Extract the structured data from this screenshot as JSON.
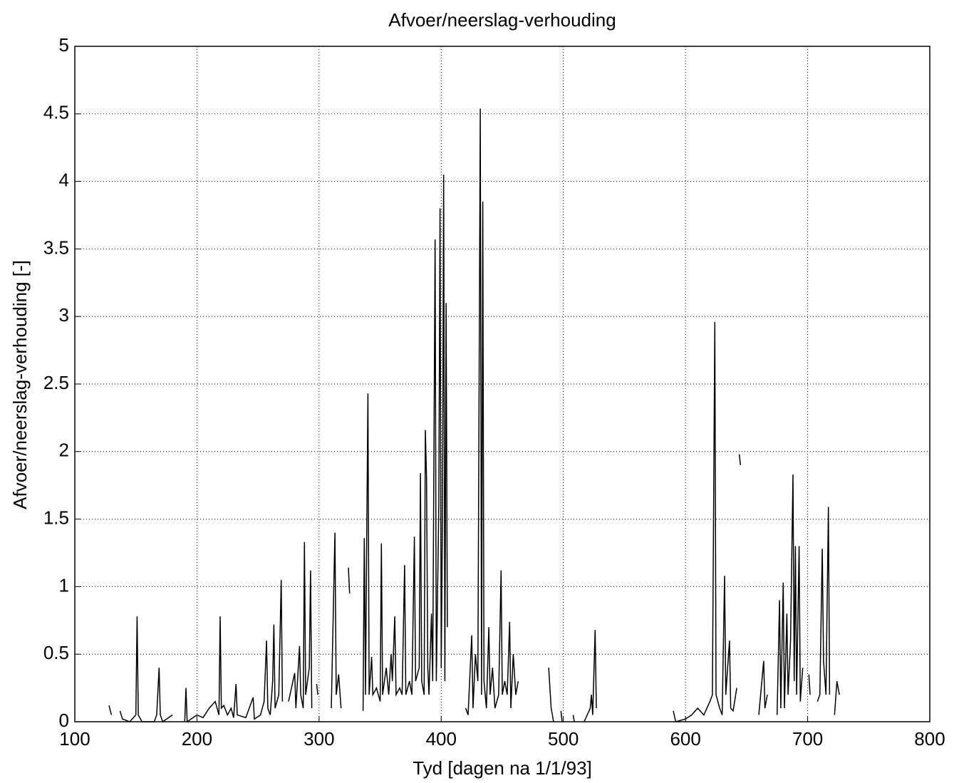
{
  "chart_data": {
    "type": "line",
    "title": "Afvoer/neerslag-verhouding",
    "x_label": "Tyd [dagen na 1/1/93]",
    "y_label": "Afvoer/neerslag-verhouding [-]",
    "x": [
      128,
      130,
      133,
      137,
      139,
      145,
      148,
      150,
      151,
      152,
      155,
      165,
      167,
      169,
      170,
      172,
      180,
      185,
      190,
      191,
      192,
      200,
      205,
      210,
      215,
      218,
      219,
      220,
      222,
      225,
      228,
      230,
      232,
      233,
      240,
      246,
      247,
      252,
      255,
      257,
      258,
      260,
      262,
      263,
      264,
      267,
      269,
      270,
      272,
      275,
      280,
      281,
      284,
      285,
      287,
      288,
      289,
      292,
      293,
      294,
      296,
      298,
      299,
      305,
      310,
      313,
      314,
      316,
      318,
      321,
      324,
      325,
      330,
      336,
      337,
      338,
      339,
      340,
      341,
      343,
      344,
      347,
      350,
      351,
      352,
      355,
      357,
      359,
      360,
      362,
      363,
      366,
      368,
      370,
      371,
      374,
      376,
      378,
      379,
      382,
      383,
      384,
      386,
      387,
      388,
      389,
      390,
      392,
      393,
      395,
      396,
      398,
      399,
      400,
      401,
      402,
      403,
      404,
      405,
      412,
      420,
      422,
      425,
      426,
      428,
      430,
      432,
      433,
      434,
      435,
      437,
      439,
      440,
      442,
      444,
      447,
      449,
      450,
      452,
      454,
      456,
      457,
      459,
      461,
      463,
      475,
      488,
      490,
      492,
      495,
      498,
      499,
      503,
      508,
      509,
      513,
      517,
      522,
      523,
      524,
      526,
      527,
      560,
      590,
      592,
      600,
      605,
      610,
      615,
      620,
      622,
      624,
      625,
      628,
      630,
      632,
      633,
      636,
      637,
      639,
      642,
      643,
      644,
      645,
      652,
      660,
      664,
      665,
      667,
      671,
      675,
      677,
      678,
      680,
      681,
      683,
      684,
      686,
      688,
      689,
      690,
      691,
      693,
      694,
      696,
      698,
      701,
      702,
      705,
      708,
      710,
      712,
      713,
      715,
      717,
      718,
      720,
      722,
      724,
      726
    ],
    "series": [
      {
        "name": "Afvoer/neerslag-verhouding",
        "color": "#000000",
        "values": [
          0.12,
          0.05,
          null,
          0.08,
          0.02,
          0,
          0.03,
          0.05,
          0.78,
          0.05,
          0,
          0,
          0.05,
          0.4,
          0.05,
          0,
          0.05,
          null,
          0,
          0.25,
          0,
          0.05,
          0.03,
          0.1,
          0.15,
          0.05,
          0.78,
          0.1,
          0.12,
          0.05,
          0.1,
          0.03,
          0.28,
          0.05,
          0.03,
          0.18,
          0.02,
          0.05,
          0.15,
          0.6,
          0.1,
          0.05,
          0.3,
          0.72,
          0.1,
          0.2,
          1.05,
          0.15,
          null,
          0.15,
          0.36,
          0.1,
          0.56,
          0.2,
          0.1,
          1.33,
          0.2,
          0.4,
          1.12,
          0.1,
          null,
          0.28,
          0.2,
          null,
          0.1,
          1.4,
          0.2,
          0.35,
          0.1,
          null,
          1.14,
          0.95,
          null,
          0.08,
          1.36,
          0.2,
          1.35,
          2.43,
          0.2,
          0.48,
          0.2,
          0.25,
          0.15,
          1.32,
          0.2,
          0.4,
          0.2,
          0.5,
          0.3,
          0.78,
          0.2,
          0.25,
          0.2,
          1.16,
          0.2,
          0.3,
          0.2,
          1.37,
          0.3,
          0.4,
          1.84,
          0.3,
          0.2,
          2.16,
          1.8,
          0.4,
          0.2,
          0.8,
          0.3,
          3.57,
          0.3,
          1.6,
          3.8,
          0.4,
          1.5,
          4.05,
          0.3,
          3.1,
          0.7,
          null,
          0.1,
          0.05,
          0.64,
          0.1,
          0.5,
          0.3,
          4.54,
          0.2,
          3.85,
          0.3,
          0.1,
          0.7,
          0.2,
          0.4,
          0.1,
          0.2,
          1.12,
          0.2,
          0.3,
          0.2,
          0.74,
          0.1,
          0.5,
          0.2,
          0.3,
          null,
          0.4,
          0.1,
          0,
          null,
          0.08,
          0,
          null,
          0.05,
          0,
          null,
          0,
          0.1,
          0.2,
          0.05,
          0.68,
          0.1,
          null,
          0.08,
          0,
          0.02,
          0.05,
          0.1,
          0.05,
          0.15,
          0.2,
          2.96,
          0.2,
          0.1,
          0.05,
          1.08,
          0.2,
          0.6,
          0.1,
          0.08,
          0.25,
          null,
          1.98,
          1.9,
          null,
          0.05,
          0.45,
          0.1,
          0.2,
          null,
          0.05,
          0.9,
          0.1,
          1.03,
          0.1,
          0.8,
          0.2,
          0.6,
          1.83,
          0.3,
          1.3,
          0.2,
          1.3,
          0.15,
          0.4,
          null,
          0.35,
          0.2,
          null,
          0.15,
          0.2,
          1.28,
          0.45,
          0.2,
          1.59,
          0.2,
          null,
          0.05,
          0.3,
          0.2
        ]
      }
    ],
    "xlim": [
      100,
      800
    ],
    "xticks": [
      100,
      200,
      300,
      400,
      500,
      600,
      700,
      800
    ],
    "ylim": [
      0,
      5
    ],
    "yticks": [
      0,
      0.5,
      1,
      1.5,
      2,
      2.5,
      3,
      3.5,
      4,
      4.5,
      5
    ],
    "grid": true
  }
}
